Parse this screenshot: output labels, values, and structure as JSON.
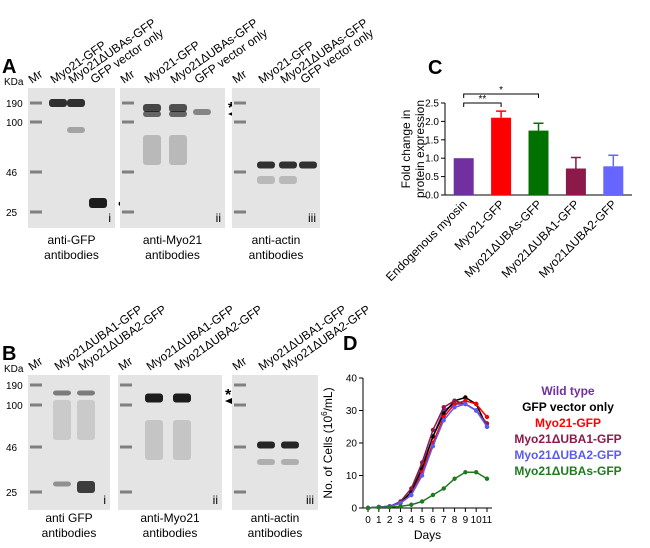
{
  "panels": [
    {
      "label": "A",
      "kda": "KDa",
      "markers": [
        190,
        100,
        46,
        25
      ],
      "blots": [
        {
          "lanes": [
            "Mr",
            "Myo21-GFP",
            "Myo21ΔUBAs-GFP",
            "GFP vector only"
          ],
          "roman": "i",
          "caption": [
            "anti-GFP",
            "antibodies"
          ],
          "mark": "•"
        },
        {
          "lanes": [
            "Mr",
            "Myo21-GFP",
            "Myo21ΔUBAs-GFP",
            "GFP vector only"
          ],
          "roman": "ii",
          "caption": [
            "anti-Myo21",
            "antibodies"
          ],
          "mark": "*"
        },
        {
          "lanes": [
            "Mr",
            "Myo21-GFP",
            "Myo21ΔUBAs-GFP",
            "GFP vector only"
          ],
          "roman": "iii",
          "caption": [
            "anti-actin",
            "antibodies"
          ]
        }
      ]
    },
    {
      "label": "B",
      "kda": "KDa",
      "markers": [
        190,
        100,
        46,
        25
      ],
      "blots": [
        {
          "lanes": [
            "Mr",
            "Myo21ΔUBA1-GFP",
            "Myo21ΔUBA2-GFP"
          ],
          "roman": "i",
          "caption": [
            "anti GFP",
            "antibodies"
          ]
        },
        {
          "lanes": [
            "Mr",
            "Myo21ΔUBA1-GFP",
            "Myo21ΔUBA2-GFP"
          ],
          "roman": "ii",
          "caption": [
            "anti-Myo21",
            "antibodies"
          ],
          "mark": "*"
        },
        {
          "lanes": [
            "Mr",
            "Myo21ΔUBA1-GFP",
            "Myo21ΔUBA2-GFP"
          ],
          "roman": "iii",
          "caption": [
            "anti-actin",
            "antibodies"
          ]
        }
      ]
    }
  ],
  "chart_data": [
    {
      "type": "bar",
      "panel": "C",
      "ylabel": [
        "Fold change in",
        "protein expression"
      ],
      "categories": [
        "Endogenous myosin",
        "Myo21-GFP",
        "Myo21ΔUBAs-GFP",
        "Myo21ΔUBA1-GFP",
        "Myo21ΔUBA2-GFP"
      ],
      "values": [
        1.0,
        2.1,
        1.75,
        0.72,
        0.78
      ],
      "errors": [
        0,
        0.18,
        0.2,
        0.3,
        0.3
      ],
      "colors": [
        "#7030a0",
        "#ff0000",
        "#007000",
        "#8b1a4a",
        "#6666ff"
      ],
      "ylim": [
        0,
        2.5
      ],
      "yticks": [
        {
          "value": 0,
          "label": "0.0"
        },
        0.5,
        {
          "value": 1,
          "label": "1.0"
        },
        1.5,
        {
          "value": 2,
          "label": "2.0"
        },
        2.5
      ],
      "annotations": [
        "**",
        "*"
      ]
    },
    {
      "type": "line",
      "panel": "D",
      "ylabel": [
        "No. of Cells (10",
        "6",
        "/mL)"
      ],
      "xlabel": "Days",
      "x": [
        0,
        1,
        2,
        3,
        4,
        5,
        6,
        7,
        8,
        9,
        10,
        11
      ],
      "xlim": [
        0,
        11
      ],
      "xticks": [
        0,
        1,
        2,
        3,
        4,
        5,
        6,
        7,
        8,
        9,
        10,
        11
      ],
      "ylim": [
        0,
        40
      ],
      "yticks": [
        0,
        10,
        20,
        30,
        40
      ],
      "series": [
        {
          "name": "Wild type",
          "color": "#7030a0",
          "values": [
            0,
            0.3,
            0.5,
            1.5,
            5,
            13,
            22,
            30,
            32,
            32,
            30,
            26
          ]
        },
        {
          "name": "GFP vector only",
          "color": "#000000",
          "values": [
            0,
            0.3,
            0.5,
            1.5,
            5,
            12,
            22,
            29,
            33,
            34,
            32,
            25
          ]
        },
        {
          "name": "Myo21-GFP",
          "color": "#ff0000",
          "values": [
            0,
            0.3,
            0.5,
            1.5,
            4,
            11,
            20,
            28,
            32,
            33,
            32,
            28
          ]
        },
        {
          "name": "Myo21ΔUBA1-GFP",
          "color": "#8b1a4a",
          "values": [
            0,
            0.3,
            0.5,
            2,
            6,
            14,
            24,
            31,
            33,
            32,
            30,
            26
          ]
        },
        {
          "name": "Myo21ΔUBA2-GFP",
          "color": "#5b5bf0",
          "values": [
            0,
            0.3,
            0.5,
            1.5,
            4,
            10,
            19,
            27,
            31,
            32,
            30,
            25
          ]
        },
        {
          "name": "Myo21ΔUBAs-GFP",
          "color": "#1f7a1f",
          "values": [
            0,
            0.2,
            0.3,
            0.5,
            1,
            2,
            4,
            6,
            9,
            11,
            11,
            9
          ]
        }
      ]
    }
  ]
}
